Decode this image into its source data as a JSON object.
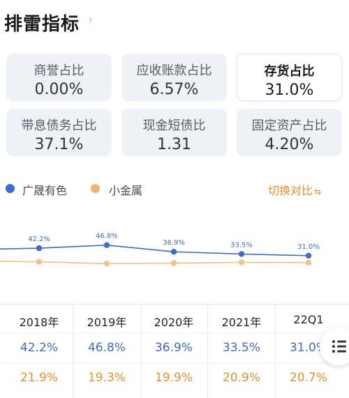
{
  "title": "排雷指标",
  "help_icon": "?",
  "metrics": [
    {
      "name": "商誉占比",
      "value": "0.00%",
      "selected": false
    },
    {
      "name": "应收账款占比",
      "value": "6.57%",
      "selected": false
    },
    {
      "name": "存货占比",
      "value": "31.0%",
      "selected": true
    },
    {
      "name": "带息债务占比",
      "value": "37.1%",
      "selected": false
    },
    {
      "name": "现金短债比",
      "value": "1.31",
      "selected": false
    },
    {
      "name": "固定资产占比",
      "value": "4.20%",
      "selected": false
    }
  ],
  "legend": {
    "series_a": "广晟有色",
    "series_b": "小金属"
  },
  "compare_toggle": {
    "label": "切换对比",
    "icon": "swap-icon"
  },
  "colors": {
    "series_a": "#3d6bd4",
    "series_b": "#f5c38a",
    "series_b_text": "#ef8e2c",
    "accent": "#f08c28"
  },
  "chart_data": {
    "type": "line",
    "categories": [
      "2018年",
      "2019年",
      "2020年",
      "2021年",
      "22Q1"
    ],
    "series": [
      {
        "name": "广晟有色",
        "values": [
          42.2,
          46.8,
          36.9,
          33.5,
          31.0
        ],
        "labels": [
          "42.2%",
          "46.8%",
          "36.9%",
          "33.5%",
          "31.0%"
        ],
        "show_labels": true
      },
      {
        "name": "小金属",
        "values": [
          21.9,
          19.3,
          19.9,
          20.9,
          20.7
        ],
        "show_labels": false
      }
    ],
    "axis_visible": false,
    "grid": false
  },
  "table": {
    "headers": [
      "2018年",
      "2019年",
      "2020年",
      "2021年",
      "22Q1"
    ],
    "rows": [
      [
        "42.2%",
        "46.8%",
        "36.9%",
        "33.5%",
        "31.0%"
      ],
      [
        "21.9%",
        "19.3%",
        "19.9%",
        "20.9%",
        "20.7%"
      ]
    ]
  },
  "menu_button": {
    "icon": "list-menu-icon"
  }
}
